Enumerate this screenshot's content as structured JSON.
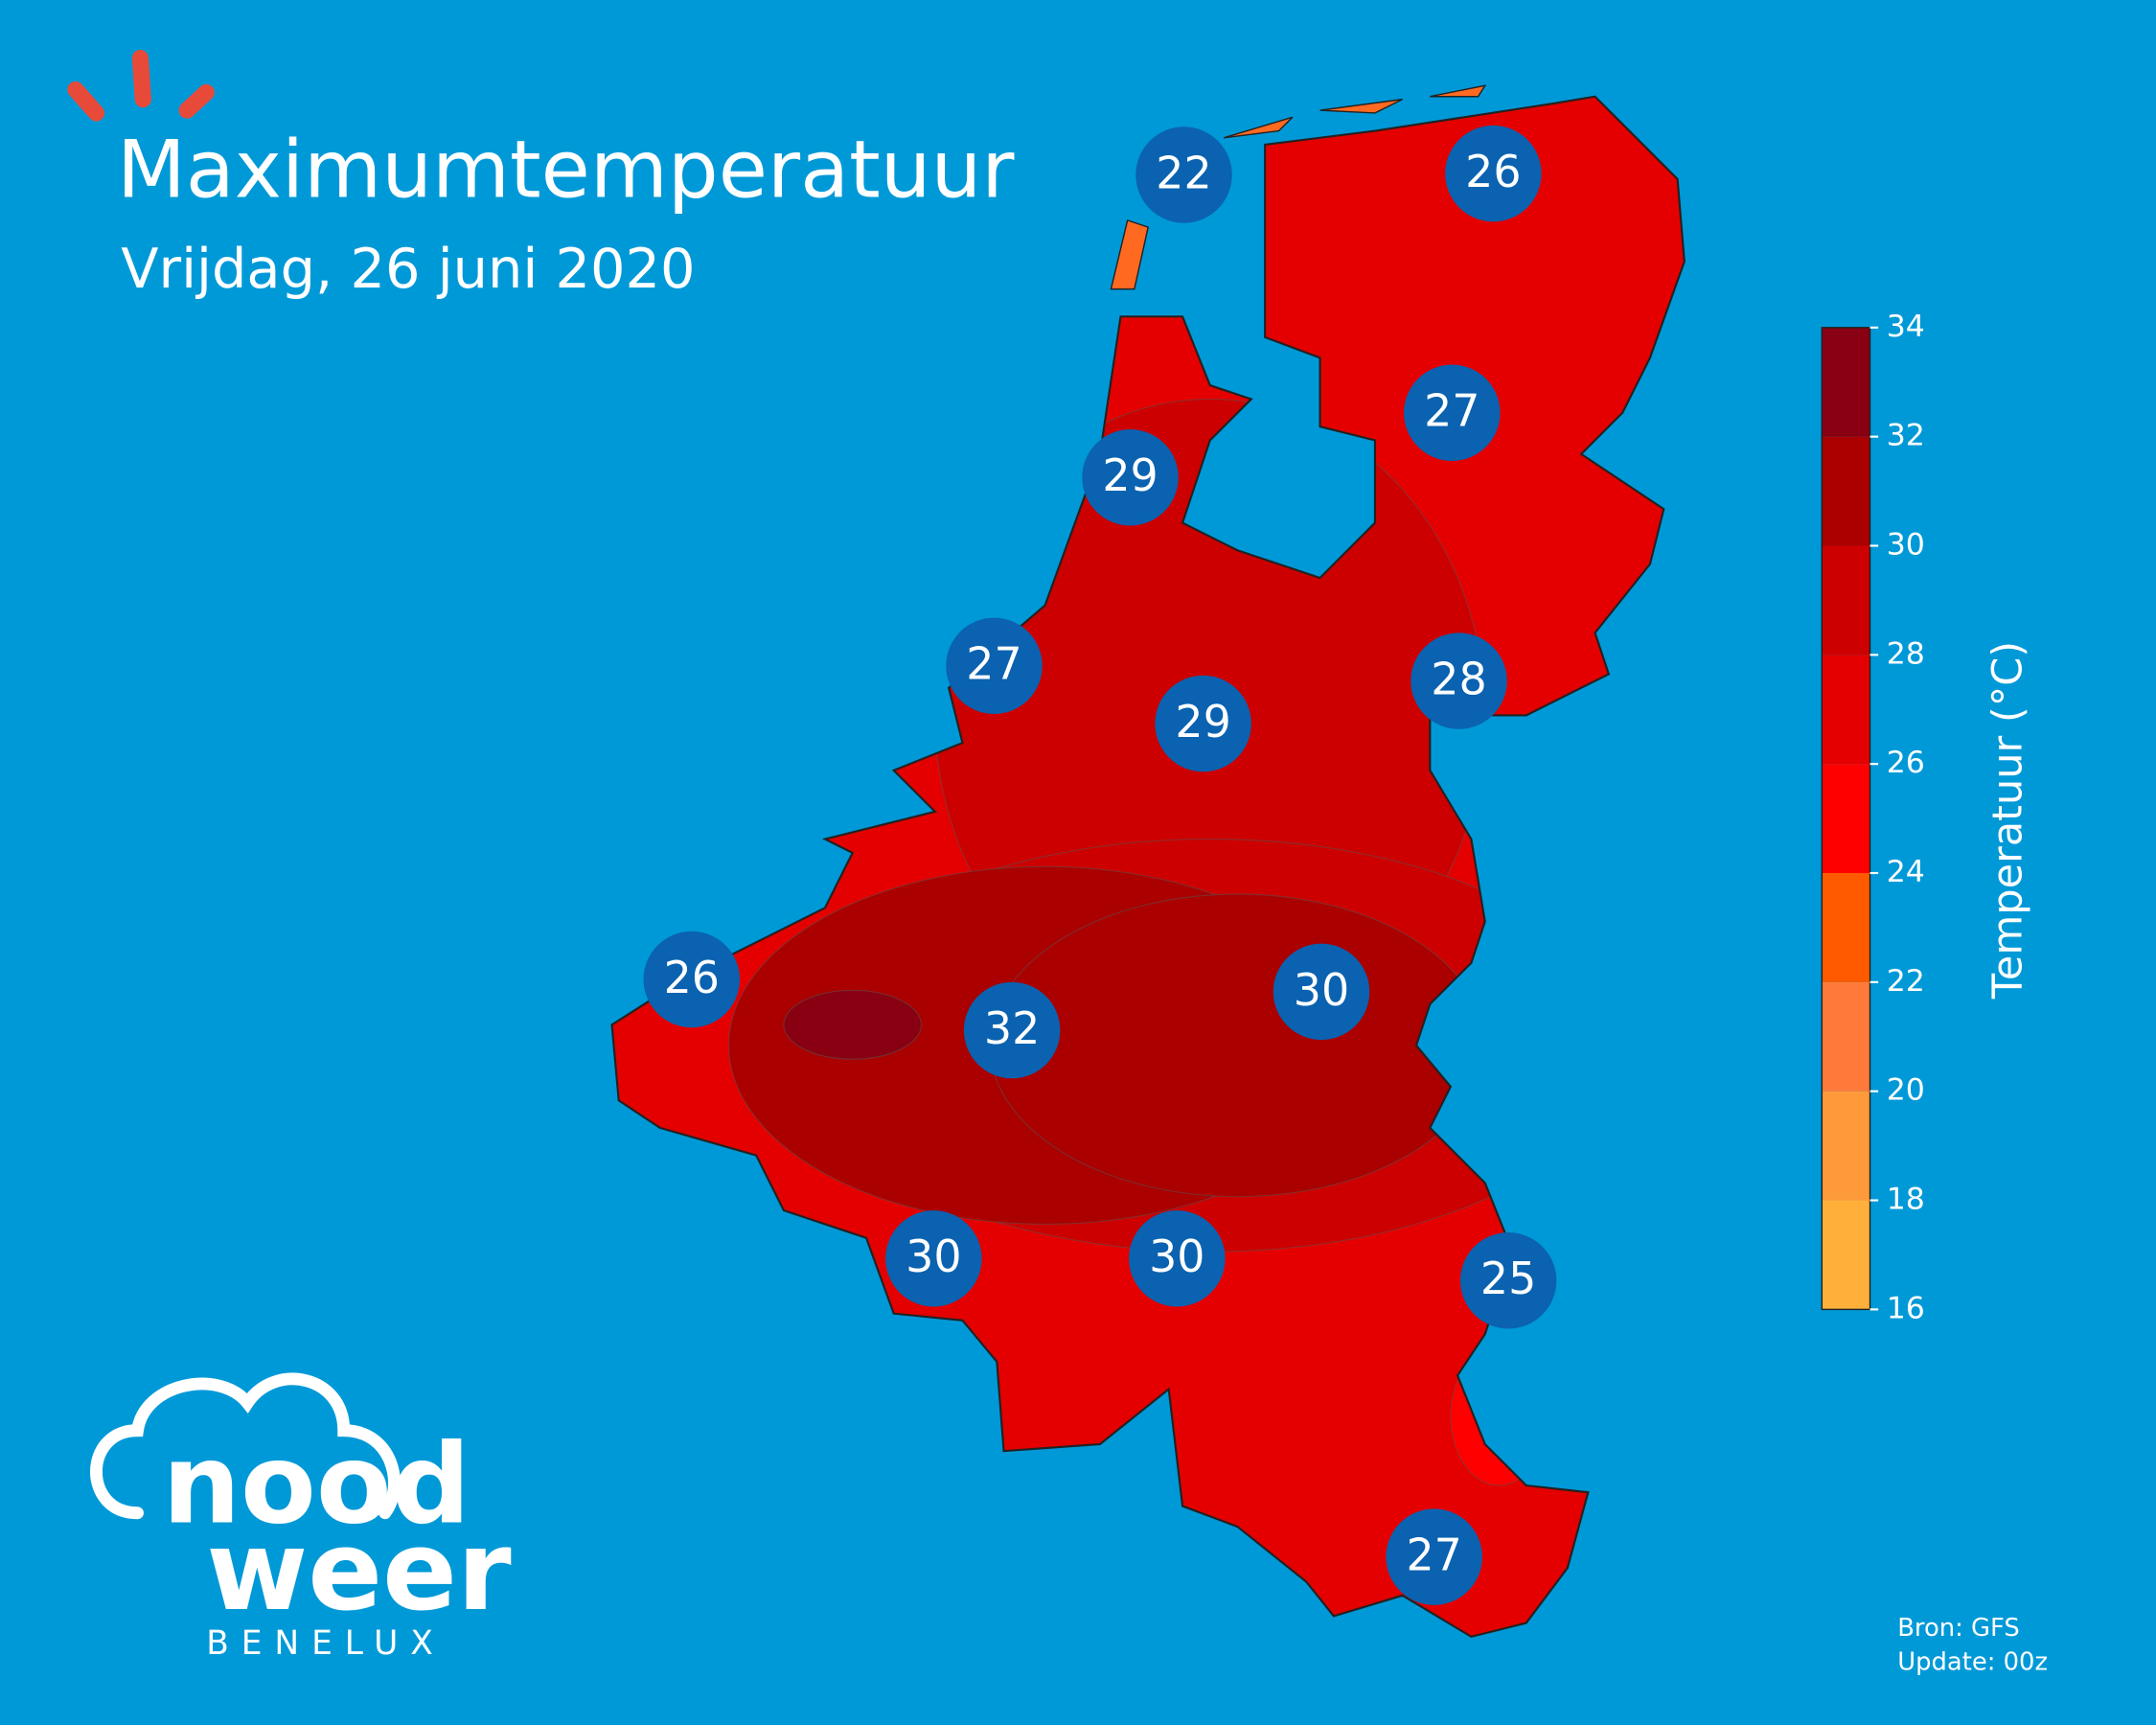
{
  "title": "Maximumtemperatuur",
  "subtitle": "Vrijdag, 26 juni 2020",
  "stations": [
    22,
    26,
    27,
    29,
    27,
    28,
    29,
    26,
    32,
    30,
    30,
    30,
    25,
    27
  ],
  "colorbar": {
    "label": "Temperatuur (°C)",
    "ticks": [
      16,
      18,
      20,
      22,
      24,
      26,
      28,
      30,
      32,
      34
    ],
    "colors": [
      "#ffb03a",
      "#ff9a3a",
      "#ff7a3a",
      "#ff5a00",
      "#ff0000",
      "#e40000",
      "#cc0000",
      "#aa0000",
      "#880012"
    ]
  },
  "source": "Bron: GFS",
  "update": "Update: 00z",
  "logo": {
    "line1": "nood",
    "line2": "weer",
    "line3": "BENELUX"
  }
}
